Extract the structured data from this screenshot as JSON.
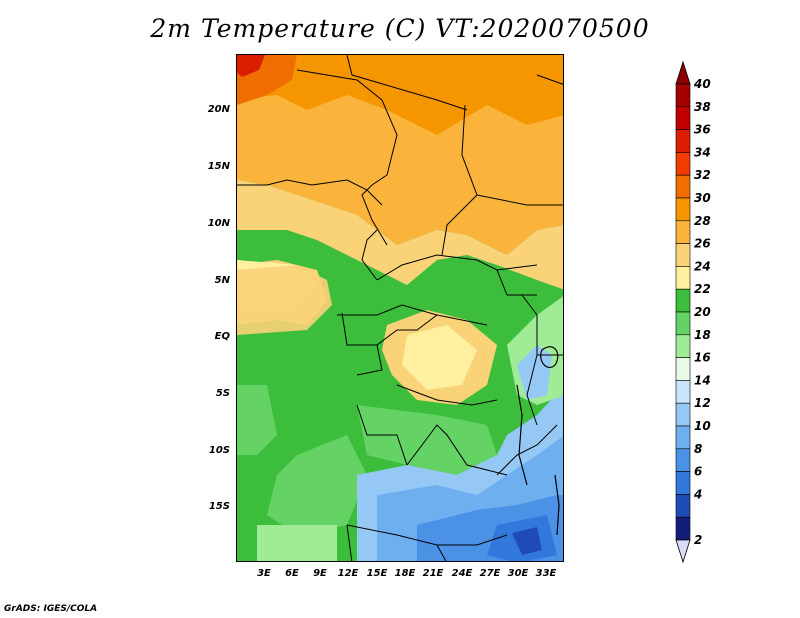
{
  "title": "2m Temperature (C) VT:2020070500",
  "footer": "GrADS: IGES/COLA",
  "map": {
    "lat_labels": [
      "20N",
      "15N",
      "10N",
      "5N",
      "EQ",
      "5S",
      "10S",
      "15S"
    ],
    "lat_values": [
      20,
      15,
      10,
      5,
      0,
      -5,
      -10,
      -15
    ],
    "lon_labels": [
      "3E",
      "6E",
      "9E",
      "12E",
      "15E",
      "18E",
      "21E",
      "24E",
      "27E",
      "30E",
      "33E"
    ],
    "lon_values": [
      3,
      6,
      9,
      12,
      15,
      18,
      21,
      24,
      27,
      30,
      33
    ],
    "lon_range": [
      0,
      35
    ],
    "lat_range": [
      -20,
      25
    ]
  },
  "legend": {
    "levels": [
      "40",
      "38",
      "36",
      "34",
      "32",
      "30",
      "28",
      "26",
      "24",
      "22",
      "20",
      "18",
      "16",
      "14",
      "12",
      "10",
      "8",
      "6",
      "4",
      "2"
    ],
    "colors": [
      "#a50000",
      "#c00000",
      "#dc1e00",
      "#f03c00",
      "#f06e00",
      "#f59600",
      "#fab43c",
      "#fad278",
      "#fff0a0",
      "#3cbe3c",
      "#64d264",
      "#a0eb96",
      "#e6fae6",
      "#c8e6fa",
      "#96c8f5",
      "#6eaff0",
      "#4b91e6",
      "#3278dc",
      "#1e4bb4",
      "#141e78"
    ],
    "top_arrow_color": "#8c0000",
    "bottom_arrow_color": "#dcdcfa"
  }
}
